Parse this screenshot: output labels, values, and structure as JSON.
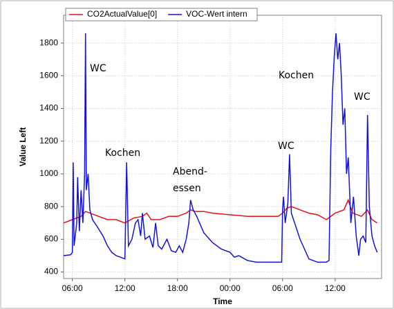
{
  "chart_data": {
    "type": "line",
    "xlabel": "Time",
    "ylabel": "Value Left",
    "xlim": [
      5,
      41.3
    ],
    "ylim": [
      360,
      1970
    ],
    "xticks": [
      {
        "value": 6,
        "label": "06:00"
      },
      {
        "value": 12,
        "label": "12:00"
      },
      {
        "value": 18,
        "label": "18:00"
      },
      {
        "value": 24,
        "label": "00:00"
      },
      {
        "value": 30,
        "label": "06:00"
      },
      {
        "value": 36,
        "label": "12:00"
      }
    ],
    "yticks": [
      400,
      600,
      800,
      1000,
      1200,
      1400,
      1600,
      1800
    ],
    "grid": true,
    "legend": "top",
    "annotations": [
      "WC",
      "Kochen",
      "Abend-",
      "essen",
      "WC",
      "Kochen",
      "WC"
    ],
    "series": [
      {
        "name": "CO2ActualValue[0]",
        "color": "#e81010",
        "x": [
          5,
          6,
          7,
          7.5,
          8,
          9,
          10,
          11,
          12,
          13,
          14,
          14.5,
          15,
          16,
          17,
          18,
          19,
          19.5,
          20,
          21,
          22,
          24,
          26,
          28,
          29.5,
          30,
          30.5,
          31,
          32,
          33,
          34,
          35,
          36,
          37,
          37.5,
          38,
          39,
          39.7,
          40.2,
          40.8
        ],
        "values": [
          700,
          720,
          740,
          770,
          760,
          740,
          720,
          720,
          700,
          730,
          740,
          760,
          720,
          720,
          740,
          740,
          760,
          780,
          770,
          770,
          760,
          750,
          740,
          740,
          740,
          760,
          790,
          800,
          780,
          760,
          750,
          720,
          760,
          780,
          840,
          760,
          740,
          780,
          720,
          700
        ]
      },
      {
        "name": "VOC-Wert intern",
        "color": "#1010e0",
        "x": [
          5,
          5.8,
          6,
          6.1,
          6.2,
          6.5,
          6.6,
          6.8,
          7,
          7.2,
          7.4,
          7.5,
          7.6,
          7.8,
          8,
          8.3,
          8.8,
          9.5,
          10,
          10.5,
          11,
          11.5,
          12,
          12.2,
          12.4,
          12.8,
          13.2,
          13.5,
          13.8,
          14,
          14.3,
          14.8,
          15.2,
          15.5,
          15.8,
          16.2,
          16.8,
          17.3,
          17.8,
          18.2,
          18.6,
          19,
          19.3,
          19.5,
          19.8,
          20.2,
          21,
          22,
          23,
          24,
          24.5,
          25,
          26,
          27,
          28,
          29,
          29.9,
          30,
          30.1,
          30.3,
          30.6,
          30.8,
          31,
          31.5,
          32,
          32.5,
          33,
          34,
          35,
          35.3,
          35.5,
          35.7,
          35.9,
          36.1,
          36.3,
          36.5,
          36.7,
          36.9,
          37.1,
          37.3,
          37.5,
          37.8,
          38.1,
          38.4,
          38.7,
          38.9,
          39.2,
          39.5,
          39.7,
          39.9,
          40.2,
          40.5,
          40.8
        ],
        "values": [
          500,
          505,
          520,
          1070,
          560,
          700,
          980,
          650,
          900,
          700,
          1000,
          1860,
          900,
          1000,
          780,
          720,
          680,
          620,
          560,
          520,
          500,
          490,
          480,
          1070,
          560,
          600,
          700,
          720,
          620,
          760,
          600,
          620,
          550,
          700,
          560,
          540,
          600,
          530,
          520,
          560,
          520,
          600,
          700,
          840,
          780,
          740,
          640,
          580,
          540,
          520,
          490,
          500,
          470,
          460,
          460,
          460,
          460,
          780,
          860,
          700,
          820,
          1120,
          760,
          680,
          600,
          540,
          480,
          460,
          460,
          470,
          1150,
          1500,
          1720,
          1860,
          1700,
          1800,
          1600,
          1300,
          1400,
          1000,
          1100,
          700,
          860,
          620,
          500,
          600,
          620,
          580,
          1360,
          800,
          620,
          560,
          520
        ]
      }
    ]
  }
}
